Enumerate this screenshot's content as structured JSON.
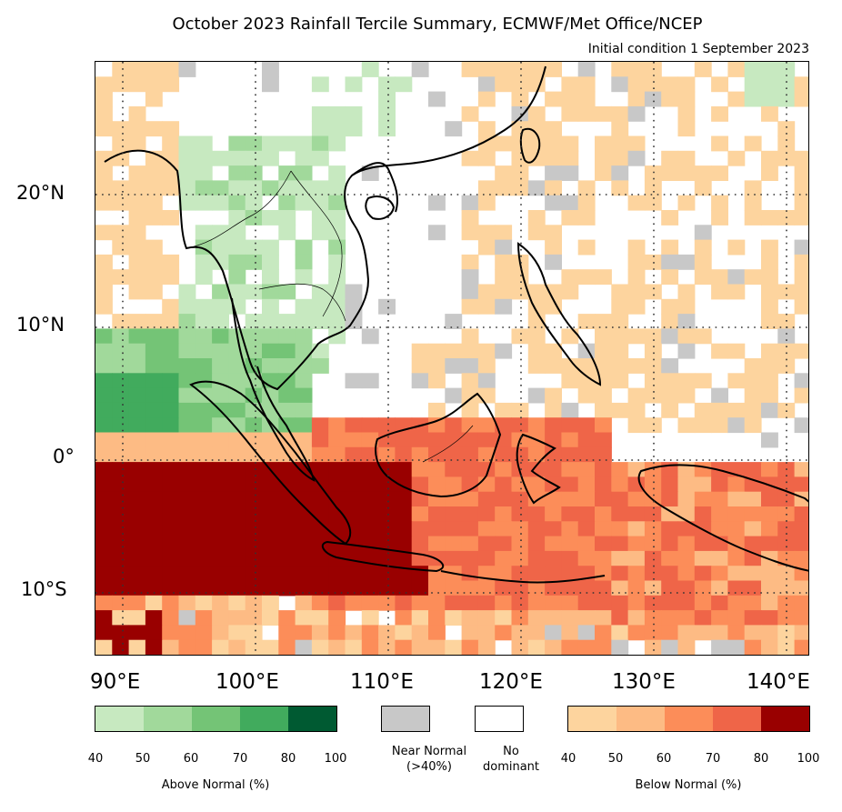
{
  "title": "October 2023 Rainfall Tercile Summary, ECMWF/Met Office/NCEP",
  "subtitle": "Initial condition 1 September 2023",
  "map": {
    "lat_labels": [
      "20°N",
      "10°N",
      "0°",
      "10°S"
    ],
    "lon_labels": [
      "90°E",
      "100°E",
      "110°E",
      "120°E",
      "130°E",
      "140°E"
    ],
    "extent": {
      "lon_min": 88,
      "lon_max": 142,
      "lat_min": -15,
      "lat_max": 30
    },
    "gridlines": "dotted"
  },
  "colors": {
    "above": [
      "#c7e9c0",
      "#a1d99b",
      "#74c476",
      "#41ab5d",
      "#005a32"
    ],
    "below": [
      "#fdd49e",
      "#fdbb84",
      "#fc8d59",
      "#ef6548",
      "#990000"
    ],
    "near_normal": "#c8c8c8",
    "no_dominant": "#ffffff",
    "coast": "#000000"
  },
  "legend": {
    "above": {
      "title": "Above Normal (%)",
      "ticks": [
        "40",
        "50",
        "60",
        "70",
        "80",
        "100"
      ]
    },
    "near_normal": {
      "label_line1": "Near Normal",
      "label_line2": "(>40%)"
    },
    "no_dominant": {
      "label_line1": "No",
      "label_line2": "dominant"
    },
    "below": {
      "title": "Below Normal (%)",
      "ticks": [
        "40",
        "50",
        "60",
        "70",
        "80",
        "100"
      ]
    }
  }
}
